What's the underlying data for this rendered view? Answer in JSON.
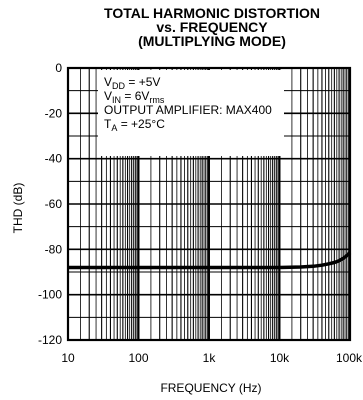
{
  "chart_data": {
    "type": "line",
    "title_lines": [
      "TOTAL HARMONIC DISTORTION",
      "vs. FREQUENCY",
      "(MULTIPLYING MODE)"
    ],
    "xlabel": "FREQUENCY (Hz)",
    "ylabel": "THD (dB)",
    "xscale": "log",
    "xlim": [
      10,
      100000
    ],
    "ylim": [
      -120,
      0
    ],
    "x_ticks": [
      10,
      100,
      1000,
      10000,
      100000
    ],
    "x_tick_labels": [
      "10",
      "100",
      "1k",
      "10k",
      "100k"
    ],
    "y_ticks": [
      0,
      -20,
      -40,
      -60,
      -80,
      -100,
      -120
    ],
    "y_tick_labels": [
      "0",
      "-20",
      "-40",
      "-60",
      "-80",
      "-100",
      "-120"
    ],
    "grid": true,
    "conditions": [
      {
        "main": "V",
        "sub": "DD",
        "rest": " = +5V"
      },
      {
        "main": "V",
        "sub": "IN",
        "rest": " = 6V",
        "sub2": "rms"
      },
      {
        "main": "OUTPUT AMPLIFIER: MAX400",
        "sub": "",
        "rest": ""
      },
      {
        "main": "T",
        "sub": "A",
        "rest": " = +25°C"
      }
    ],
    "series": [
      {
        "x": [
          10,
          20,
          50,
          100,
          200,
          500,
          1000,
          2000,
          5000,
          10000,
          20000,
          30000,
          40000,
          50000,
          60000,
          70000,
          80000,
          90000,
          100000
        ],
        "y": [
          -88,
          -88,
          -88,
          -88,
          -88,
          -88,
          -88,
          -88,
          -88,
          -88,
          -87.8,
          -87.5,
          -87,
          -86.4,
          -85.8,
          -85,
          -84,
          -82.8,
          -81.5
        ]
      }
    ]
  }
}
